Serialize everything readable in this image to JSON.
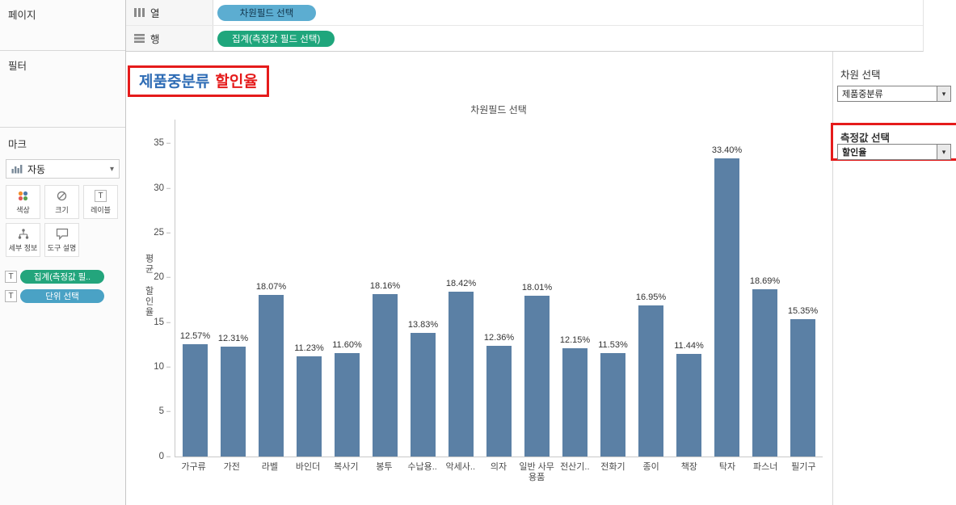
{
  "icons": {
    "chevron_down": "▾",
    "label_t": "T"
  },
  "colors": {
    "bar": "#5b80a5",
    "columns_pill": "#5cadd1",
    "rows_pill": "#1fa67c",
    "annotation": "#e51b1b",
    "title_dimension": "#2e6cb5",
    "title_measure": "#e51b1b"
  },
  "left_panel": {
    "pages_label": "페이지",
    "filters_label": "필터",
    "marks": {
      "title": "마크",
      "mark_type": "자동",
      "buttons": [
        {
          "label": "색상"
        },
        {
          "label": "크기"
        },
        {
          "label": "레이블"
        },
        {
          "label": "세부 정보"
        },
        {
          "label": "도구 설명"
        }
      ],
      "pills": [
        {
          "prefix": "T",
          "label": "집계(측정값 필..",
          "color": "green"
        },
        {
          "prefix": "T",
          "label": "단위 선택",
          "color": "teal"
        }
      ]
    }
  },
  "shelves": {
    "columns_label": "열",
    "columns_pill": "차원필드 선택",
    "rows_label": "행",
    "rows_pill": "집계(측정값 필드 선택)"
  },
  "sheet_title": {
    "dimension": "제품중분류",
    "measure": "할인율"
  },
  "right_panel": {
    "dimension_label": "차원 선택",
    "dimension_value": "제품중분류",
    "measure_label": "측정값 선택",
    "measure_value": "할인율"
  },
  "chart_data": {
    "type": "bar",
    "title": "차원필드 선택",
    "y_axis_label": "평균 할인율",
    "categories": [
      "가구류",
      "가전",
      "라벨",
      "바인더",
      "복사기",
      "봉투",
      "수납용..",
      "악세사..",
      "의자",
      "일반 사무용품",
      "전산기..",
      "전화기",
      "종이",
      "책장",
      "탁자",
      "파스너",
      "필기구"
    ],
    "values": [
      12.57,
      12.31,
      18.07,
      11.23,
      11.6,
      18.16,
      13.83,
      18.42,
      12.36,
      18.01,
      12.15,
      11.53,
      16.95,
      11.44,
      33.4,
      18.69,
      15.35
    ],
    "labels": [
      "12.57%",
      "12.31%",
      "18.07%",
      "11.23%",
      "11.60%",
      "18.16%",
      "13.83%",
      "18.42%",
      "12.36%",
      "18.01%",
      "12.15%",
      "11.53%",
      "16.95%",
      "11.44%",
      "33.40%",
      "18.69%",
      "15.35%"
    ],
    "ylim": [
      0,
      35
    ],
    "yticks": [
      0,
      5,
      10,
      15,
      20,
      25,
      30,
      35
    ],
    "grid": false,
    "legend": false,
    "bar_color": "#5b80a5"
  }
}
